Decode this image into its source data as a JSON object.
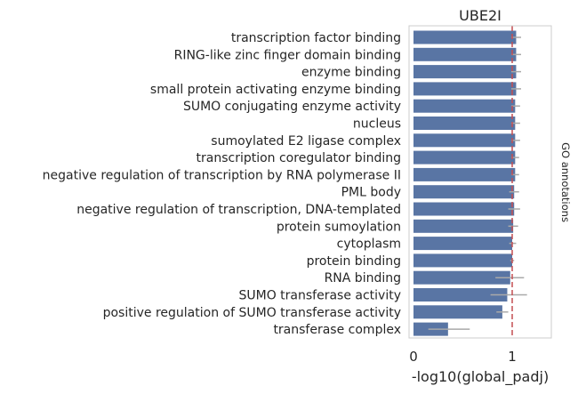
{
  "chart_data": {
    "type": "bar",
    "orientation": "horizontal",
    "title": "UBE2I",
    "xlabel": "-log10(global_padj)",
    "side_label": "GO annotations",
    "categories": [
      "transcription factor binding",
      "RING-like zinc finger domain binding",
      "enzyme binding",
      "small protein activating enzyme binding",
      "SUMO conjugating enzyme activity",
      "nucleus",
      "sumoylated E2 ligase complex",
      "transcription coregulator binding",
      "negative regulation of transcription by RNA polymerase II",
      "PML body",
      "negative regulation of transcription, DNA-templated",
      "protein sumoylation",
      "cytoplasm",
      "protein binding",
      "RNA binding",
      "SUMO transferase activity",
      "positive regulation of SUMO transferase activity",
      "transferase complex"
    ],
    "values": [
      1.04,
      1.04,
      1.04,
      1.04,
      1.03,
      1.03,
      1.03,
      1.03,
      1.03,
      1.02,
      1.02,
      1.01,
      1.0,
      1.0,
      0.98,
      0.95,
      0.9,
      0.35
    ],
    "error": [
      [
        0.99,
        1.09
      ],
      [
        0.99,
        1.09
      ],
      [
        0.99,
        1.09
      ],
      [
        0.99,
        1.09
      ],
      [
        0.99,
        1.08
      ],
      [
        0.99,
        1.08
      ],
      [
        0.99,
        1.08
      ],
      [
        0.99,
        1.07
      ],
      [
        0.99,
        1.07
      ],
      [
        0.97,
        1.07
      ],
      [
        0.96,
        1.08
      ],
      [
        0.96,
        1.06
      ],
      [
        0.97,
        1.04
      ],
      [
        0.98,
        1.02
      ],
      [
        0.83,
        1.12
      ],
      [
        0.78,
        1.15
      ],
      [
        0.84,
        0.96
      ],
      [
        0.15,
        0.57
      ]
    ],
    "xlim": [
      0,
      1.38
    ],
    "xticks": [
      0,
      1
    ],
    "reference_line": 1.0,
    "bar_color": "#5975a4",
    "error_color": "#a9a9a9",
    "reference_color": "#c44e52",
    "grid": false
  }
}
